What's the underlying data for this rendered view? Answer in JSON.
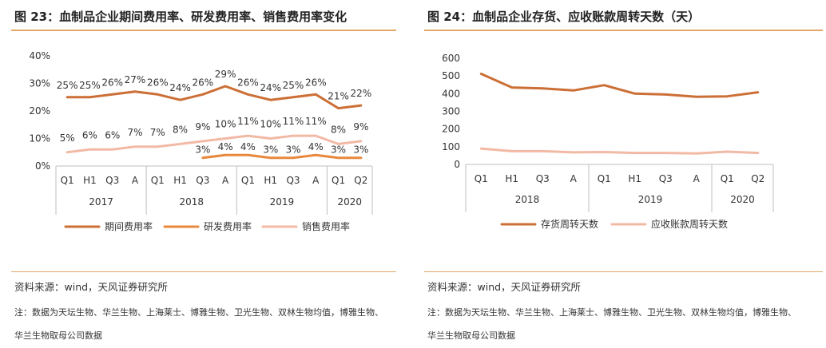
{
  "left": {
    "title": "图 23：血制品企业期间费用率、研发费用率、销售费用率变化",
    "source": "资料来源：wind，天风证券研究所",
    "note_line1": "注：数据为天坛生物、华兰生物、上海莱士、博雅生物、卫光生物、双林生物均值，博雅生物、",
    "note_line2": "华兰生物取母公司数据",
    "chart_data": {
      "type": "line",
      "title": "血制品企业期间费用率、研发费用率、销售费用率变化",
      "categories": [
        "Q1",
        "H1",
        "Q3",
        "A",
        "Q1",
        "H1",
        "Q3",
        "A",
        "Q1",
        "H1",
        "Q3",
        "A",
        "Q1",
        "Q2"
      ],
      "years": [
        {
          "label": "2017",
          "start": 0,
          "end": 3
        },
        {
          "label": "2018",
          "start": 4,
          "end": 7
        },
        {
          "label": "2019",
          "start": 8,
          "end": 11
        },
        {
          "label": "2020",
          "start": 12,
          "end": 13
        }
      ],
      "y_ticks": [
        "0%",
        "10%",
        "20%",
        "30%",
        "40%"
      ],
      "ylim": [
        0,
        40
      ],
      "legend_position": "bottom",
      "series": [
        {
          "name": "期间费用率",
          "color": "#CC6F36",
          "values": [
            25,
            25,
            26,
            27,
            26,
            24,
            26,
            29,
            26,
            24,
            25,
            26,
            21,
            22
          ],
          "labels": [
            "25%",
            "25%",
            "26%",
            "27%",
            "26%",
            "24%",
            "26%",
            "29%",
            "26%",
            "24%",
            "25%",
            "26%",
            "21%",
            "22%"
          ]
        },
        {
          "name": "研发费用率",
          "color": "#E8883D",
          "values": [
            null,
            null,
            null,
            null,
            null,
            null,
            3,
            4,
            4,
            3,
            3,
            4,
            3,
            3
          ],
          "labels": [
            "",
            "",
            "",
            "",
            "",
            "",
            "3%",
            "4%",
            "4%",
            "3%",
            "3%",
            "4%",
            "3%",
            "3%"
          ]
        },
        {
          "name": "销售费用率",
          "color": "#F2B9A5",
          "values": [
            5,
            6,
            6,
            7,
            7,
            8,
            9,
            10,
            11,
            10,
            11,
            11,
            8,
            9
          ],
          "labels": [
            "5%",
            "6%",
            "6%",
            "7%",
            "7%",
            "8%",
            "9%",
            "10%",
            "11%",
            "10%",
            "11%",
            "11%",
            "8%",
            "9%"
          ]
        }
      ]
    }
  },
  "right": {
    "title": "图 24：血制品企业存货、应收账款周转天数（天）",
    "source": "资料来源：wind，天风证券研究所",
    "note_line1": "注：数据为天坛生物、华兰生物、上海莱士、博雅生物、卫光生物、双林生物均值，博雅生物、",
    "note_line2": "华兰生物取母公司数据",
    "chart_data": {
      "type": "line",
      "title": "血制品企业存货、应收账款周转天数（天）",
      "categories": [
        "Q1",
        "H1",
        "Q3",
        "A",
        "Q1",
        "H1",
        "Q3",
        "A",
        "Q1",
        "Q2"
      ],
      "years": [
        {
          "label": "2018",
          "start": 0,
          "end": 3
        },
        {
          "label": "2019",
          "start": 4,
          "end": 7
        },
        {
          "label": "2020",
          "start": 8,
          "end": 9
        }
      ],
      "y_ticks": [
        "0",
        "100",
        "200",
        "300",
        "400",
        "500",
        "600"
      ],
      "ylim": [
        0,
        600
      ],
      "legend_position": "bottom",
      "series": [
        {
          "name": "存货周转天数",
          "color": "#CC6F36",
          "values": [
            512,
            435,
            430,
            418,
            448,
            400,
            395,
            382,
            385,
            408
          ]
        },
        {
          "name": "应收账款周转天数",
          "color": "#F2B9A5",
          "values": [
            90,
            75,
            75,
            68,
            70,
            65,
            65,
            62,
            72,
            65
          ]
        }
      ]
    }
  }
}
